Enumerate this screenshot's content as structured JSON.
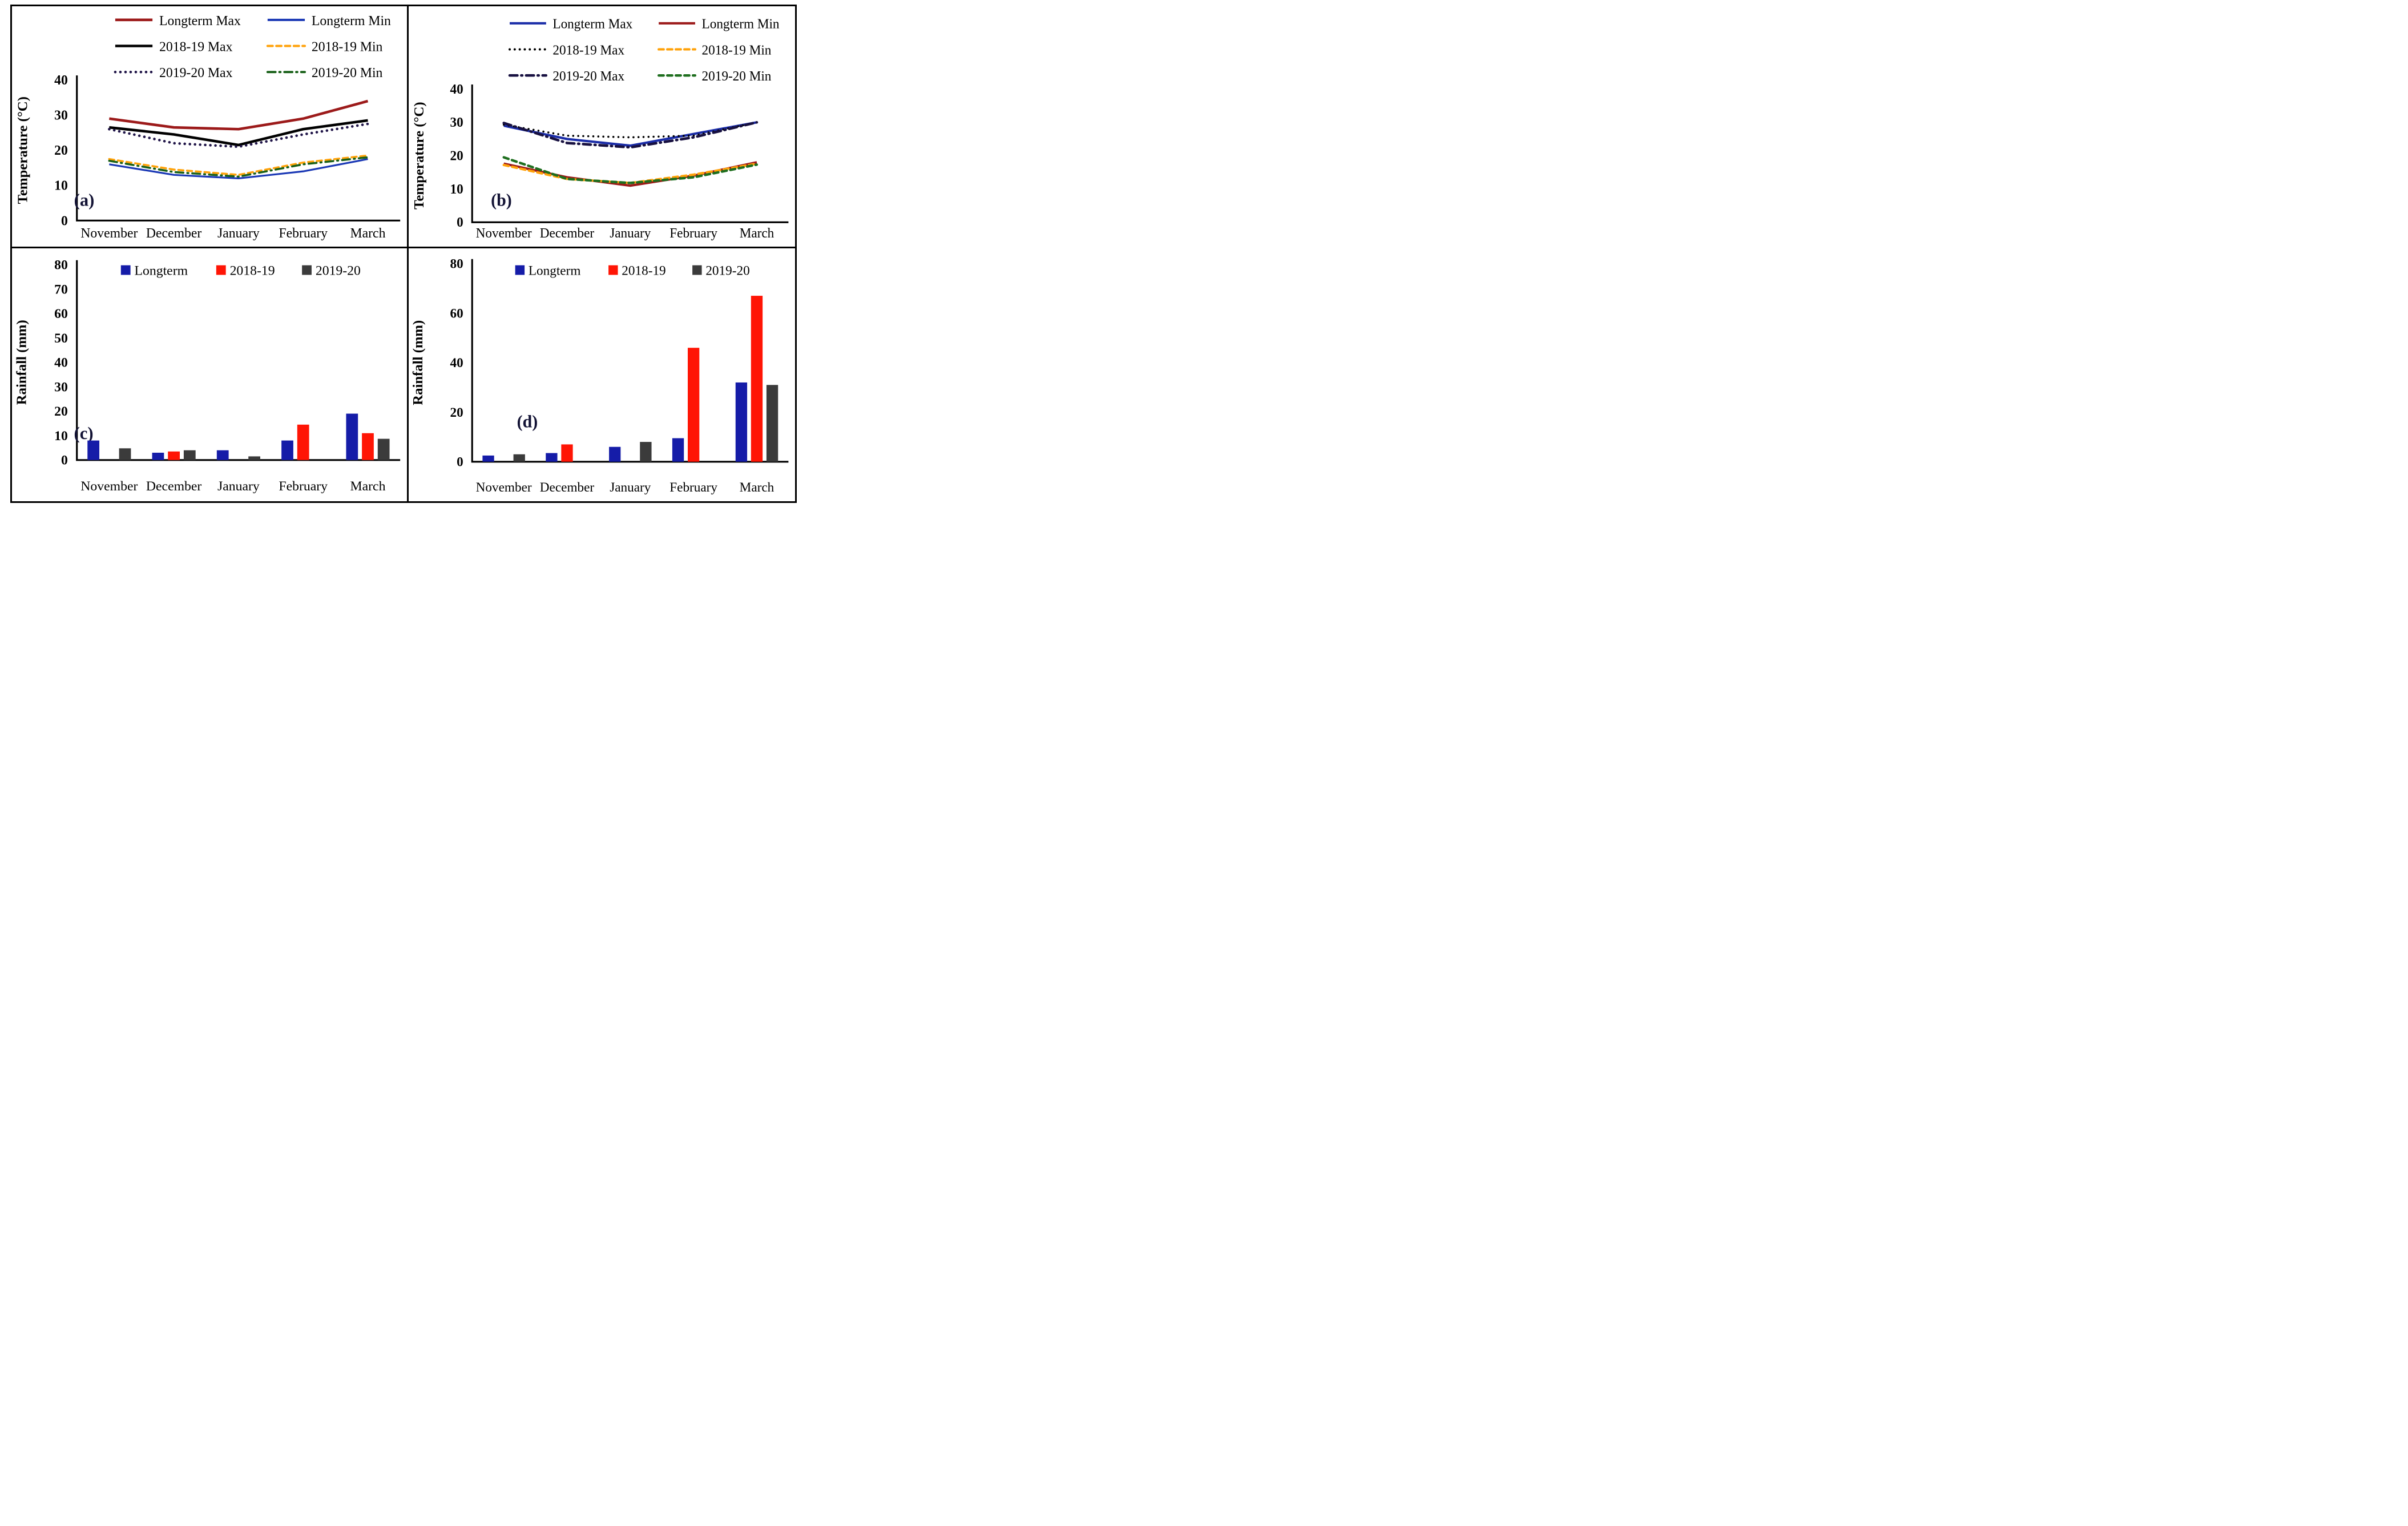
{
  "figure": {
    "background": "#ffffff",
    "border_color": "#000000",
    "letter_color": "#131335"
  },
  "chart_data": [
    {
      "id": "a",
      "type": "line",
      "letter": "(a)",
      "title": "",
      "xlabel": "",
      "ylabel": "Temperature (°C)",
      "ylim": [
        0,
        40
      ],
      "yticks": [
        0,
        10,
        20,
        30,
        40
      ],
      "legend_position": "top",
      "grid": false,
      "categories": [
        "November",
        "December",
        "January",
        "February",
        "March"
      ],
      "series": [
        {
          "name": "Longterm Max",
          "color": "#9C1A1A",
          "style": "solid",
          "width": 4.6,
          "values": [
            29,
            26.5,
            26,
            29,
            34
          ]
        },
        {
          "name": "Longterm Min",
          "color": "#1A38B5",
          "style": "solid",
          "width": 3.2,
          "values": [
            16,
            13,
            12,
            14,
            17.5
          ]
        },
        {
          "name": "2018-19 Max",
          "color": "#000000",
          "style": "solid",
          "width": 4.6,
          "values": [
            26.5,
            24.5,
            21.5,
            26,
            28.5
          ]
        },
        {
          "name": "2018-19 Min",
          "color": "#FFA20A",
          "style": "dashed",
          "width": 3.6,
          "values": [
            17.5,
            14.5,
            13,
            16.5,
            18.5
          ]
        },
        {
          "name": "2019-20 Max",
          "color": "#201548",
          "style": "dotted",
          "width": 4.6,
          "values": [
            26,
            22,
            21,
            24.5,
            27.5
          ]
        },
        {
          "name": "2019-20 Min",
          "color": "#186018",
          "style": "dashdot",
          "width": 3.6,
          "values": [
            17,
            13.8,
            12.5,
            16,
            18
          ]
        }
      ]
    },
    {
      "id": "b",
      "type": "line",
      "letter": "(b)",
      "title": "",
      "xlabel": "",
      "ylabel": "Temperature (°C)",
      "ylim": [
        0,
        40
      ],
      "yticks": [
        0,
        10,
        20,
        30,
        40
      ],
      "legend_position": "top",
      "grid": false,
      "categories": [
        "November",
        "December",
        "January",
        "February",
        "March"
      ],
      "series": [
        {
          "name": "Longterm Max",
          "color": "#1B2DA8",
          "style": "solid",
          "width": 4.2,
          "values": [
            29,
            25,
            23,
            26.5,
            30
          ]
        },
        {
          "name": "Longterm Min",
          "color": "#9C1A1A",
          "style": "solid",
          "width": 4.2,
          "values": [
            17.6,
            13.5,
            11,
            14,
            18
          ]
        },
        {
          "name": "2018-19 Max",
          "color": "#000000",
          "style": "dotted",
          "width": 3.6,
          "values": [
            29.3,
            26,
            25.5,
            26,
            30
          ]
        },
        {
          "name": "2018-19 Min",
          "color": "#FFA20A",
          "style": "dashed",
          "width": 4.2,
          "values": [
            17.2,
            13,
            11.8,
            14.3,
            17.6
          ]
        },
        {
          "name": "2019-20 Max",
          "color": "#171040",
          "style": "dashdot",
          "width": 4.6,
          "values": [
            29.8,
            23.8,
            22.5,
            25.5,
            30
          ]
        },
        {
          "name": "2019-20 Min",
          "color": "#1E6E1E",
          "style": "dashed",
          "width": 4.4,
          "values": [
            19.5,
            13,
            11.8,
            13.5,
            17.3
          ]
        }
      ]
    },
    {
      "id": "c",
      "type": "bar",
      "letter": "(c)",
      "title": "",
      "xlabel": "",
      "ylabel": "Rainfall (mm)",
      "ylim": [
        0,
        80
      ],
      "yticks": [
        0,
        10,
        20,
        30,
        40,
        50,
        60,
        70,
        80
      ],
      "legend_position": "top",
      "grid": false,
      "categories": [
        "November",
        "December",
        "January",
        "February",
        "March"
      ],
      "series": [
        {
          "name": "Longterm",
          "color": "#151CA8",
          "values": [
            8,
            3,
            4,
            8,
            19
          ]
        },
        {
          "name": "2018-19",
          "color": "#FF1505",
          "values": [
            0,
            3.5,
            0,
            14.5,
            11
          ]
        },
        {
          "name": "2019-20",
          "color": "#3B3B3B",
          "values": [
            4.8,
            4,
            1.5,
            0,
            8.7
          ]
        }
      ]
    },
    {
      "id": "d",
      "type": "bar",
      "letter": "(d)",
      "title": "",
      "xlabel": "",
      "ylabel": "Rainfall (mm)",
      "ylim": [
        0,
        80
      ],
      "yticks": [
        0,
        20,
        40,
        60,
        80
      ],
      "legend_position": "top",
      "grid": false,
      "categories": [
        "November",
        "December",
        "January",
        "February",
        "March"
      ],
      "series": [
        {
          "name": "Longterm",
          "color": "#151CA8",
          "values": [
            2.5,
            3.5,
            6,
            9.5,
            32
          ]
        },
        {
          "name": "2018-19",
          "color": "#FF1505",
          "values": [
            0,
            7,
            0,
            46,
            67
          ]
        },
        {
          "name": "2019-20",
          "color": "#3B3B3B",
          "values": [
            3,
            0,
            8,
            0,
            31
          ]
        }
      ]
    }
  ]
}
